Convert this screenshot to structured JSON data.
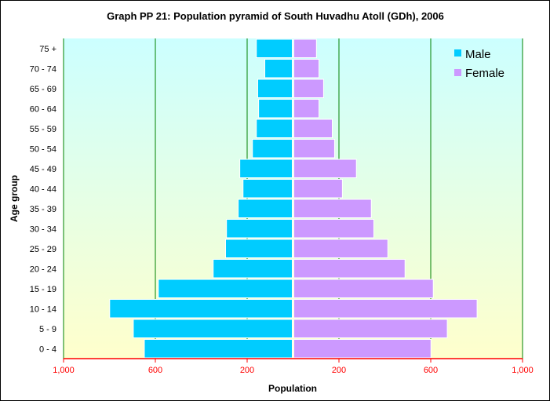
{
  "chart_data": {
    "type": "bar",
    "orientation": "horizontal-pyramid",
    "title": "Graph PP 21: Population pyramid  of South Huvadhu Atoll (GDh), 2006",
    "xlabel": "Population",
    "ylabel": "Age group",
    "xlim": [
      -1000,
      1000
    ],
    "x_ticks": [
      -1000,
      -600,
      -200,
      200,
      600,
      1000
    ],
    "x_tick_labels": [
      "1,000",
      "600",
      "200",
      "200",
      "600",
      "1,000"
    ],
    "grid": "vertical",
    "legend_position": "top-right",
    "categories": [
      "0 - 4",
      "5 - 9",
      "10 - 14",
      "15 - 19",
      "20 - 24",
      "25 - 29",
      "30 - 34",
      "35 - 39",
      "40 - 44",
      "45 - 49",
      "50 - 54",
      "55 - 59",
      "60 - 64",
      "65 - 69",
      "70 - 74",
      "75 +"
    ],
    "series": [
      {
        "name": "Male",
        "color": "#00ccff",
        "values": [
          648,
          696,
          799,
          587,
          348,
          294,
          290,
          239,
          218,
          232,
          177,
          160,
          150,
          154,
          123,
          160
        ]
      },
      {
        "name": "Female",
        "color": "#cc99ff",
        "values": [
          601,
          672,
          802,
          611,
          488,
          413,
          352,
          341,
          215,
          276,
          181,
          171,
          113,
          133,
          113,
          102
        ]
      }
    ],
    "colors": {
      "gridline": "#008000",
      "x_axis": "#ff0000",
      "plot_bg_top": "#ccffff",
      "plot_bg_bottom": "#ffffcc"
    }
  }
}
